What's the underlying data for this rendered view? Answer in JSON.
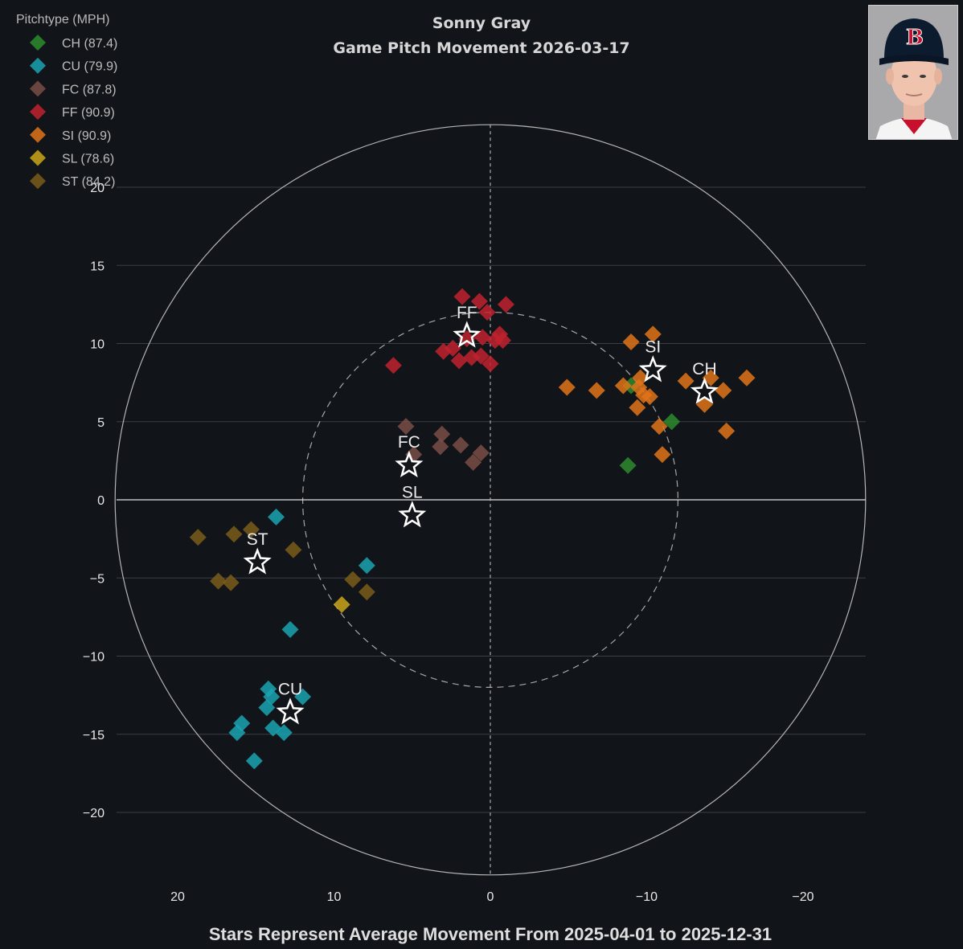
{
  "header": {
    "title": "Sonny Gray",
    "subtitle": "Game Pitch Movement 2026-03-17"
  },
  "footer": {
    "text": "Stars Represent Average Movement From 2025-04-01 to 2025-12-31"
  },
  "legend": {
    "title": "Pitchtype (MPH)",
    "placement": "top-left",
    "items": [
      {
        "key": "CH",
        "label": "CH (87.4)",
        "color": "#2e8b2e"
      },
      {
        "key": "CU",
        "label": "CU (79.9)",
        "color": "#1ba3b3"
      },
      {
        "key": "FC",
        "label": "FC (87.8)",
        "color": "#7a4d48"
      },
      {
        "key": "FF",
        "label": "FF (90.9)",
        "color": "#c0222e"
      },
      {
        "key": "SI",
        "label": "SI (90.9)",
        "color": "#e0731a"
      },
      {
        "key": "SL",
        "label": "SL (78.6)",
        "color": "#c9a41a"
      },
      {
        "key": "ST",
        "label": "ST (84.2)",
        "color": "#7a5a1a"
      }
    ]
  },
  "photo": {
    "icon": "player-headshot-icon",
    "cap_logo": "B"
  },
  "chart_data": {
    "type": "scatter",
    "xlim": [
      24,
      -24
    ],
    "ylim": [
      -24,
      24
    ],
    "x_reversed": true,
    "x_ticks": [
      20,
      10,
      0,
      -10,
      -20
    ],
    "x_tick_labels": [
      "20",
      "10",
      "0",
      "−10",
      "−20"
    ],
    "y_ticks": [
      20,
      15,
      10,
      5,
      0,
      -5,
      -10,
      -15,
      -20
    ],
    "y_tick_labels": [
      "20",
      "15",
      "10",
      "5",
      "0",
      "−5",
      "−10",
      "−15",
      "−20"
    ],
    "grid": "horizontal",
    "circles": [
      {
        "radius": 24,
        "style": "solid"
      },
      {
        "radius": 12,
        "style": "dashed"
      }
    ],
    "series": [
      {
        "name": "CH (87.4)",
        "key": "CH",
        "color": "#2e8b2e",
        "points": [
          [
            -9.0,
            7.3
          ],
          [
            -11.6,
            5.0
          ],
          [
            -8.8,
            2.2
          ]
        ]
      },
      {
        "name": "CU (79.9)",
        "key": "CU",
        "color": "#1ba3b3",
        "points": [
          [
            13.7,
            -1.1
          ],
          [
            7.9,
            -4.2
          ],
          [
            12.8,
            -8.3
          ],
          [
            14.2,
            -12.1
          ],
          [
            14.0,
            -12.6
          ],
          [
            12.0,
            -12.6
          ],
          [
            14.3,
            -13.3
          ],
          [
            15.9,
            -14.3
          ],
          [
            16.2,
            -14.9
          ],
          [
            13.9,
            -14.6
          ],
          [
            13.2,
            -14.9
          ],
          [
            15.1,
            -16.7
          ]
        ]
      },
      {
        "name": "FC (87.8)",
        "key": "FC",
        "color": "#7a4d48",
        "points": [
          [
            5.4,
            4.7
          ],
          [
            3.1,
            4.2
          ],
          [
            4.9,
            2.9
          ],
          [
            3.2,
            3.4
          ],
          [
            1.9,
            3.5
          ],
          [
            0.6,
            3.0
          ],
          [
            1.1,
            2.4
          ]
        ]
      },
      {
        "name": "FF (90.9)",
        "key": "FF",
        "color": "#c0222e",
        "points": [
          [
            1.8,
            13.0
          ],
          [
            0.7,
            12.7
          ],
          [
            -1.0,
            12.5
          ],
          [
            0.2,
            12.0
          ],
          [
            6.2,
            8.6
          ],
          [
            3.0,
            9.5
          ],
          [
            2.4,
            9.7
          ],
          [
            1.2,
            9.1
          ],
          [
            2.0,
            8.9
          ],
          [
            0.6,
            9.2
          ],
          [
            0.0,
            8.7
          ],
          [
            -0.3,
            10.2
          ],
          [
            -0.6,
            10.6
          ],
          [
            0.5,
            10.4
          ],
          [
            -0.8,
            10.2
          ],
          [
            1.5,
            10.3
          ]
        ]
      },
      {
        "name": "SI (90.9)",
        "key": "SI",
        "color": "#e0731a",
        "points": [
          [
            -9.0,
            10.1
          ],
          [
            -10.4,
            10.6
          ],
          [
            -4.9,
            7.2
          ],
          [
            -6.8,
            7.0
          ],
          [
            -8.5,
            7.3
          ],
          [
            -9.5,
            7.2
          ],
          [
            -9.8,
            6.7
          ],
          [
            -10.2,
            6.6
          ],
          [
            -9.4,
            5.9
          ],
          [
            -9.6,
            7.8
          ],
          [
            -10.8,
            4.7
          ],
          [
            -11.0,
            2.9
          ],
          [
            -12.5,
            7.6
          ],
          [
            -14.1,
            7.8
          ],
          [
            -14.9,
            7.0
          ],
          [
            -13.7,
            6.1
          ],
          [
            -15.1,
            4.4
          ],
          [
            -16.4,
            7.8
          ]
        ]
      },
      {
        "name": "SL (78.6)",
        "key": "SL",
        "color": "#c9a41a",
        "points": [
          [
            9.5,
            -6.7
          ]
        ]
      },
      {
        "name": "ST (84.2)",
        "key": "ST",
        "color": "#7a5a1a",
        "points": [
          [
            18.7,
            -2.4
          ],
          [
            16.4,
            -2.2
          ],
          [
            15.3,
            -1.9
          ],
          [
            12.6,
            -3.2
          ],
          [
            17.4,
            -5.2
          ],
          [
            16.6,
            -5.3
          ],
          [
            8.8,
            -5.1
          ],
          [
            7.9,
            -5.9
          ]
        ]
      }
    ],
    "averages": [
      {
        "label": "FF",
        "x": 1.5,
        "y": 10.5
      },
      {
        "label": "SI",
        "x": -10.4,
        "y": 8.3
      },
      {
        "label": "CH",
        "x": -13.7,
        "y": 6.9
      },
      {
        "label": "FC",
        "x": 5.2,
        "y": 2.2
      },
      {
        "label": "SL",
        "x": 5.0,
        "y": -1.0
      },
      {
        "label": "ST",
        "x": 14.9,
        "y": -4.0
      },
      {
        "label": "CU",
        "x": 12.8,
        "y": -13.6
      }
    ]
  }
}
